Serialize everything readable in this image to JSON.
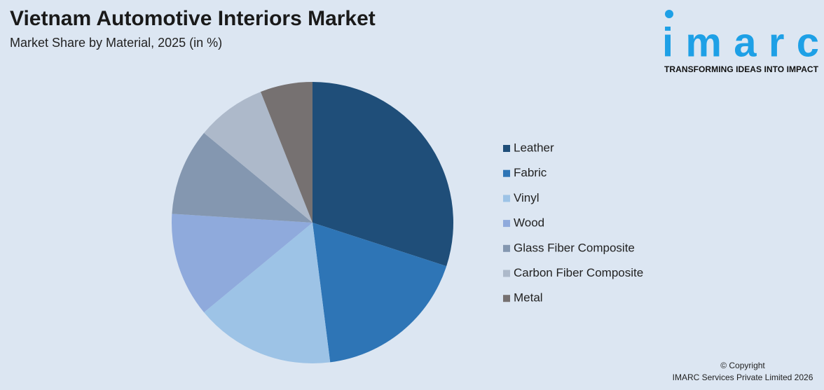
{
  "chart_data": {
    "type": "pie",
    "title": "Vietnam Automotive Interiors Market",
    "subtitle": "Market Share by Material, 2025 (in %)",
    "categories": [
      "Leather",
      "Fabric",
      "Vinyl",
      "Wood",
      "Glass Fiber Composite",
      "Carbon Fiber Composite",
      "Metal"
    ],
    "values": [
      30,
      18,
      16,
      12,
      10,
      8,
      6
    ],
    "colors": [
      "#1f4e79",
      "#2e75b6",
      "#9dc3e6",
      "#8faadc",
      "#8497b0",
      "#adb9ca",
      "#767171"
    ],
    "legend": "right"
  },
  "brand": {
    "logo": "imarc",
    "tagline": "TRANSFORMING IDEAS INTO IMPACT",
    "copyright": [
      "© Copyright",
      "IMARC Services Private Limited 2026"
    ]
  }
}
